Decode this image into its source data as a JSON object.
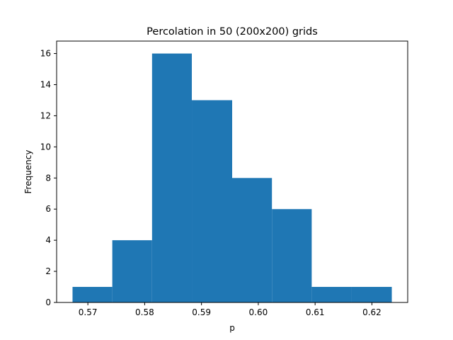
{
  "chart_data": {
    "type": "bar",
    "subtype": "histogram",
    "title": "Percolation in 50 (200x200) grids",
    "xlabel": "p",
    "ylabel": "Frequency",
    "bin_edges": [
      0.5673,
      0.5743,
      0.5813,
      0.5883,
      0.5954,
      0.6024,
      0.6094,
      0.6164,
      0.6235
    ],
    "counts": [
      1,
      4,
      16,
      13,
      8,
      6,
      1,
      1
    ],
    "xlim": [
      0.5645,
      0.6263
    ],
    "ylim": [
      0,
      16.8
    ],
    "xticks": [
      {
        "value": 0.57,
        "label": "0.57"
      },
      {
        "value": 0.58,
        "label": "0.58"
      },
      {
        "value": 0.59,
        "label": "0.59"
      },
      {
        "value": 0.6,
        "label": "0.60"
      },
      {
        "value": 0.61,
        "label": "0.61"
      },
      {
        "value": 0.62,
        "label": "0.62"
      }
    ],
    "yticks": [
      {
        "value": 0,
        "label": "0"
      },
      {
        "value": 2,
        "label": "2"
      },
      {
        "value": 4,
        "label": "4"
      },
      {
        "value": 6,
        "label": "6"
      },
      {
        "value": 8,
        "label": "8"
      },
      {
        "value": 10,
        "label": "10"
      },
      {
        "value": 12,
        "label": "12"
      },
      {
        "value": 14,
        "label": "14"
      },
      {
        "value": 16,
        "label": "16"
      }
    ],
    "grid": false,
    "legend": "none",
    "bar_color": "#1f77b4"
  }
}
